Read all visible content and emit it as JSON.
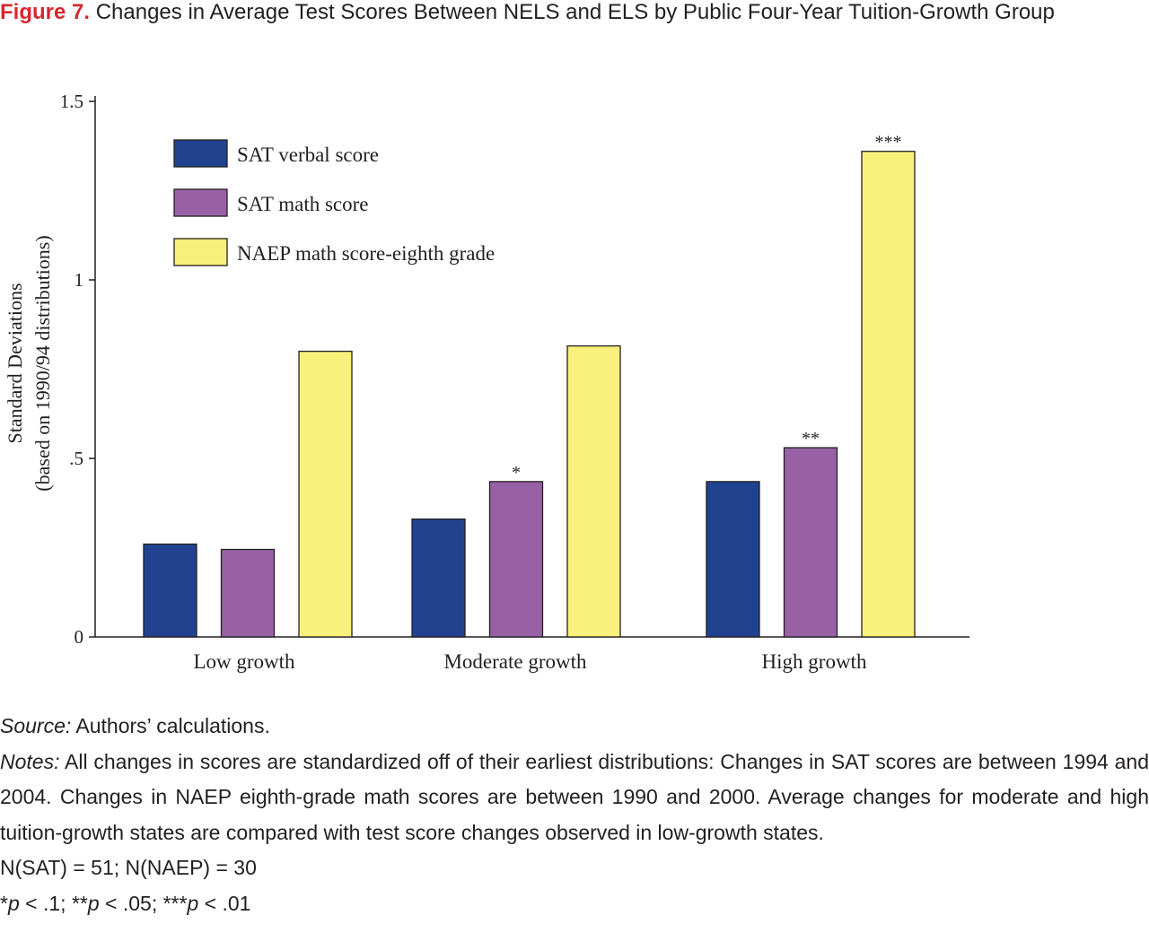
{
  "figure": {
    "label": "Figure 7.",
    "title": "Changes in Average Test Scores Between NELS and ELS by Public Four-Year Tuition-Growth Group"
  },
  "chart_data": {
    "type": "bar",
    "categories": [
      "Low growth",
      "Moderate growth",
      "High growth"
    ],
    "series": [
      {
        "name": "SAT verbal score",
        "color": "#21438f",
        "values": [
          0.26,
          0.33,
          0.435
        ],
        "significance": [
          "",
          "",
          ""
        ]
      },
      {
        "name": "SAT math score",
        "color": "#9861a6",
        "values": [
          0.245,
          0.435,
          0.53
        ],
        "significance": [
          "",
          "*",
          "**"
        ]
      },
      {
        "name": "NAEP math score-eighth grade",
        "color": "#f8f07a",
        "values": [
          0.8,
          0.815,
          1.36
        ],
        "significance": [
          "",
          "",
          "***"
        ]
      }
    ],
    "ylabel_line1": "Standard Deviations",
    "ylabel_line2": "(based on 1990/94 distributions)",
    "ylim": [
      0,
      1.5
    ],
    "yticks": [
      {
        "value": 0,
        "label": "0"
      },
      {
        "value": 0.5,
        "label": ".5"
      },
      {
        "value": 1,
        "label": "1"
      },
      {
        "value": 1.5,
        "label": "1.5"
      }
    ],
    "legend_position": "top-left",
    "grid": false
  },
  "notes": {
    "source_label": "Source:",
    "source_text": " Authors’ calculations.",
    "notes_label": "Notes:",
    "notes_text": " All changes in scores are standardized off of their earliest distributions: Changes in SAT scores are between 1994 and 2004. Changes in NAEP eighth-grade math scores are between 1990 and 2000. Average changes for moderate and high tuition-growth states are compared with test score changes observed in low-growth states.",
    "n_line": "N(SAT) = 51; N(NAEP) = 30",
    "sig": {
      "star1": "*",
      "p1": "p",
      "t1": " < .1; ",
      "star2": "**",
      "p2": "p",
      "t2": " < .05; ",
      "star3": "***",
      "p3": "p",
      "t3": " < .01"
    }
  }
}
